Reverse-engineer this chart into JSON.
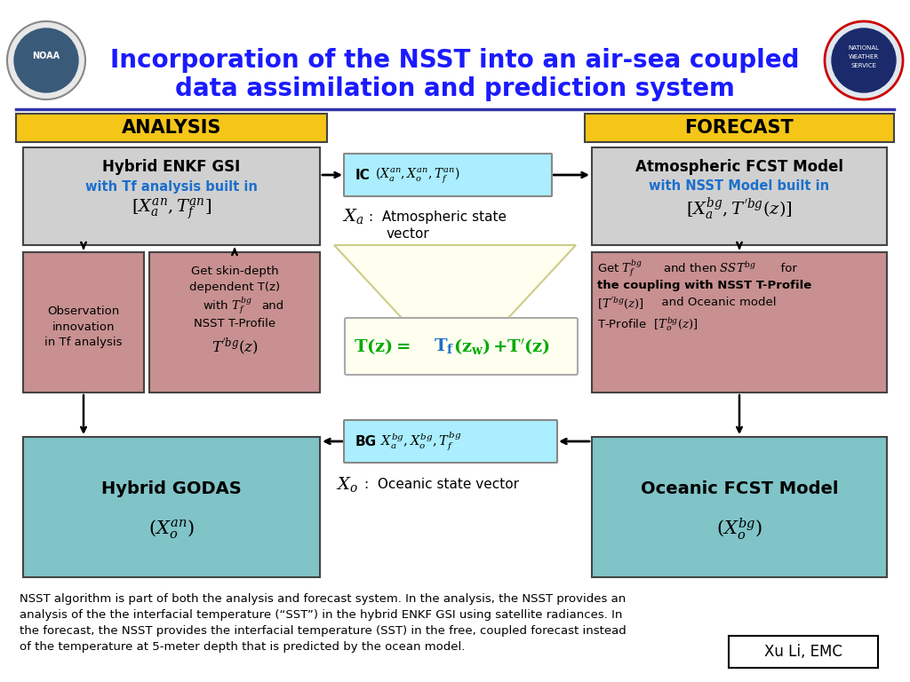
{
  "title_line1": "Incorporation of the NSST into an air-sea coupled",
  "title_line2": "data assimilation and prediction system",
  "title_color": "#1a1aff",
  "title_fontsize": 20,
  "bg_color": "#ffffff",
  "header_bg": "#f5c518",
  "analysis_header": "ANALYSIS",
  "forecast_header": "FORECAST",
  "gray_box_color": "#d0d0d0",
  "pink_box_color": "#c89090",
  "teal_box_color": "#80c4c8",
  "cyan_box_color": "#aaeeff",
  "yellow_box_color": "#fffff0",
  "blue_text": "#1a6fcc",
  "green_text": "#00aa00",
  "footer_text": "NSST algorithm is part of both the analysis and forecast system. In the analysis, the NSST provides an\nanalysis of the the interfacial temperature (“SST”) in the hybrid ENKF GSI using satellite radiances. In\nthe forecast, the NSST provides the interfacial temperature (SST) in the free, coupled forecast instead\nof the temperature at 5-meter depth that is predicted by the ocean model.",
  "author_text": "Xu Li, EMC"
}
